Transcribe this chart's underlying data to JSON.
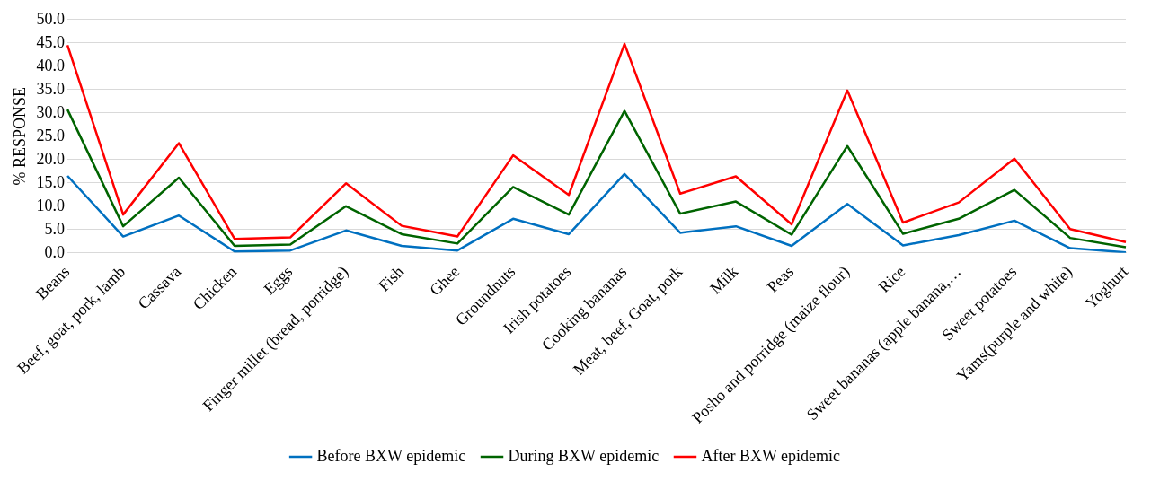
{
  "chart_data": {
    "type": "line",
    "ylabel": "% RESPONSE",
    "categories": [
      "Beans",
      "Beef, goat, pork, lamb",
      "Cassava",
      "Chicken",
      "Eggs",
      "Finger millet (bread, porridge)",
      "Fish",
      "Ghee",
      "Groundnuts",
      "Irish potatoes",
      "Cooking bananas",
      "Meat, beef, Goat, pork",
      "Milk",
      "Peas",
      "Posho and porridge (maize flour)",
      "Rice",
      "Sweet bananas (apple banana,…",
      "Sweet potatoes",
      "Yams(purple and white)",
      "Yoghurt"
    ],
    "series": [
      {
        "name": "Before BXW epidemic",
        "color": "#0070c0",
        "values": [
          16.5,
          3.5,
          8.0,
          0.3,
          0.5,
          4.8,
          1.5,
          0.5,
          7.3,
          4.0,
          16.9,
          4.3,
          5.7,
          1.5,
          10.5,
          1.6,
          3.8,
          6.9,
          1.0,
          0.1
        ]
      },
      {
        "name": "During BXW epidemic",
        "color": "#006400",
        "values": [
          30.7,
          5.7,
          16.1,
          1.5,
          1.8,
          10.0,
          4.0,
          2.0,
          14.1,
          8.2,
          30.4,
          8.4,
          11.0,
          3.9,
          22.9,
          4.1,
          7.3,
          13.5,
          3.2,
          1.2
        ]
      },
      {
        "name": "After BXW epidemic",
        "color": "#ff0000",
        "values": [
          44.5,
          8.2,
          23.5,
          3.0,
          3.3,
          14.9,
          5.8,
          3.5,
          20.9,
          12.4,
          44.8,
          12.7,
          16.4,
          6.1,
          34.8,
          6.5,
          10.8,
          20.2,
          5.1,
          2.3
        ]
      }
    ],
    "ylim": [
      0,
      50
    ],
    "yticks": [
      {
        "value": 0,
        "label": "0.0"
      },
      {
        "value": 5,
        "label": "5.0"
      },
      {
        "value": 10,
        "label": "10.0"
      },
      {
        "value": 15,
        "label": "15.0"
      },
      {
        "value": 20,
        "label": "20.0"
      },
      {
        "value": 25,
        "label": "25.0"
      },
      {
        "value": 30,
        "label": "30.0"
      },
      {
        "value": 35,
        "label": "35.0"
      },
      {
        "value": 40,
        "label": "40.0"
      },
      {
        "value": 45,
        "label": "45.0"
      },
      {
        "value": 50,
        "label": "50.0"
      }
    ],
    "grid": "y",
    "legend": "bottom",
    "marker": "none",
    "line_style": "solid"
  }
}
